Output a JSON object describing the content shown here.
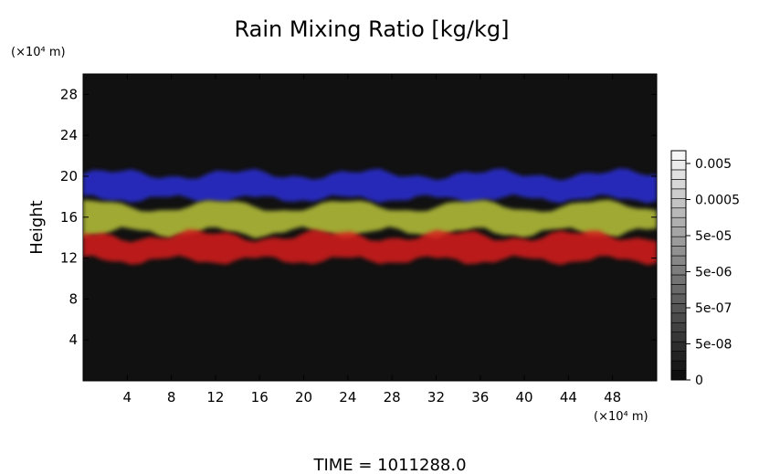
{
  "chart_data": {
    "type": "heatmap",
    "title": "Rain Mixing Ratio [kg/kg]",
    "ylabel": "Height",
    "y_unit": "(×10⁴ m)",
    "x_unit": "(×10⁴ m)",
    "xlim": [
      0,
      52
    ],
    "ylim": [
      0,
      30
    ],
    "x_ticks": [
      4,
      8,
      12,
      16,
      20,
      24,
      28,
      32,
      36,
      40,
      44,
      48
    ],
    "y_ticks": [
      4,
      8,
      12,
      16,
      20,
      24,
      28
    ],
    "colorbar": {
      "labels": [
        "0.005",
        "0.0005",
        "5e-05",
        "5e-06",
        "5e-07",
        "5e-08",
        "0"
      ],
      "scale": "log"
    },
    "background_color": "#111111",
    "bands": [
      {
        "name": "blue",
        "color": "#2b2fd6",
        "y_center": 19.0,
        "thickness": 2.4
      },
      {
        "name": "yellow-green",
        "color": "#b9c43a",
        "y_center": 15.8,
        "thickness": 2.6
      },
      {
        "name": "red",
        "color": "#d81e1e",
        "y_center": 13.0,
        "thickness": 2.4
      }
    ],
    "time_label": "TIME = 1011288.0"
  }
}
